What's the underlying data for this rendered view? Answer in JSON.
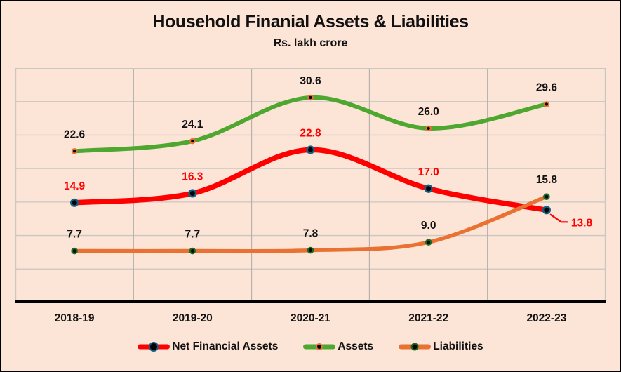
{
  "chart_data": {
    "type": "line",
    "title": "Household Finanial Assets & Liabilities",
    "subtitle": "Rs. lakh crore",
    "categories": [
      "2018-19",
      "2019-20",
      "2020-21",
      "2021-22",
      "2022-23"
    ],
    "series": [
      {
        "name": "Net Financial Assets",
        "values": [
          14.9,
          16.3,
          22.8,
          17.0,
          13.8
        ],
        "color": "#fe0000",
        "marker_ring": "#156082",
        "label_color": "#fe0000",
        "line_width": 7.5,
        "marker_core": 4.8,
        "ring_width": 2.6
      },
      {
        "name": "Assets",
        "values": [
          22.6,
          24.1,
          30.6,
          26.0,
          29.6
        ],
        "color": "#4ea72e",
        "marker_ring": "#e97132",
        "label_color": "#111111",
        "line_width": 6,
        "marker_core": 3.2,
        "ring_width": 2.2
      },
      {
        "name": "Liabilities",
        "values": [
          7.7,
          7.7,
          7.8,
          9.0,
          15.8
        ],
        "color": "#e97132",
        "marker_ring": "#196b24",
        "label_color": "#111111",
        "line_width": 5.5,
        "marker_core": 3.6,
        "ring_width": 2.4
      }
    ],
    "ylim": [
      0,
      35
    ],
    "gridline_step": 5,
    "grid": true,
    "legend_position": "bottom",
    "callout": {
      "series_index": 0,
      "point_index": 4
    }
  },
  "colors": {
    "background": "#fce4d6",
    "frame_border": "#000000",
    "gridline_h": "#cac6c2",
    "gridline_v": "#b5b1ae",
    "axis_line": "#000000",
    "label_text": "#111111"
  }
}
